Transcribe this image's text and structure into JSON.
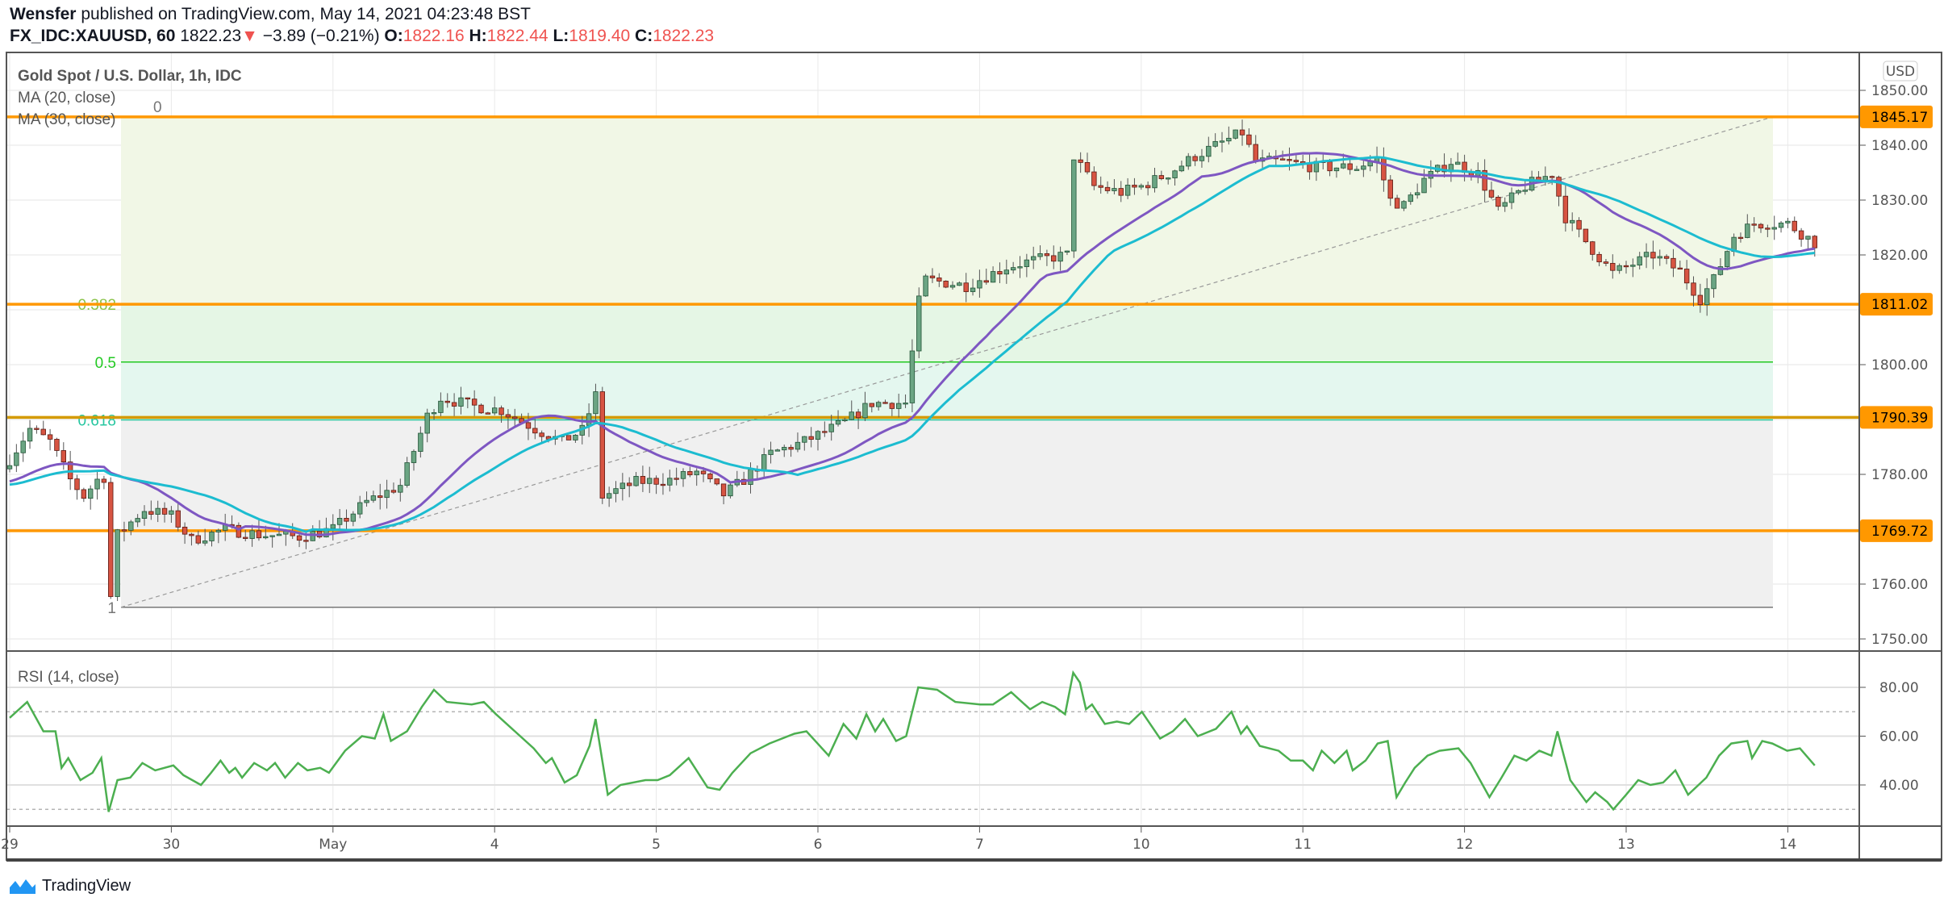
{
  "header": {
    "author": "Wensfer",
    "published": "published on TradingView.com, May 14, 2021 04:23:48 BST",
    "symbol": "FX_IDC:XAUUSD, 60",
    "last": "1822.23",
    "change": "−3.89 (−0.21%)",
    "o_label": "O:",
    "o": "1822.16",
    "h_label": "H:",
    "h": "1822.44",
    "l_label": "L:",
    "l": "1819.40",
    "c_label": "C:",
    "c": "1822.23"
  },
  "legend": {
    "title": "Gold Spot / U.S. Dollar, 1h, IDC",
    "ma20": "MA (20, close)",
    "ma30": "MA (30, close)",
    "rsi": "RSI (14, close)"
  },
  "price_axis": {
    "currency": "USD",
    "ticks": [
      "1850.00",
      "1840.00",
      "1830.00",
      "1820.00",
      "1800.00",
      "1780.00",
      "1760.00",
      "1750.00"
    ],
    "tick_values": [
      1850,
      1840,
      1830,
      1820,
      1800,
      1780,
      1760,
      1750
    ],
    "levels": [
      {
        "label": "1845.17",
        "value": 1845.17,
        "color": "#ff9800"
      },
      {
        "label": "1811.02",
        "value": 1811.02,
        "color": "#ff9800"
      },
      {
        "label": "1790.39",
        "value": 1790.39,
        "color": "#d49a00"
      },
      {
        "label": "1769.72",
        "value": 1769.72,
        "color": "#ff9800"
      }
    ]
  },
  "fib": {
    "high": 1845.17,
    "low": 1755.77,
    "levels": [
      {
        "label": "0",
        "ratio": 0,
        "color": "#777777"
      },
      {
        "label": "0.382",
        "ratio": 0.382,
        "color": "#8bc34a"
      },
      {
        "label": "0.5",
        "ratio": 0.5,
        "color": "#22c922"
      },
      {
        "label": "0.618",
        "ratio": 0.618,
        "color": "#26c6a0"
      },
      {
        "label": "1",
        "ratio": 1,
        "color": "#777777"
      }
    ],
    "bands": [
      "#f1f7e6",
      "#e5f6e5",
      "#e4f7ef",
      "#f0f0f0"
    ]
  },
  "time_axis": {
    "labels": [
      "29",
      "30",
      "May",
      "4",
      "5",
      "6",
      "7",
      "10",
      "11",
      "12",
      "13",
      "14"
    ],
    "hours": [
      0,
      24,
      48,
      72,
      96,
      120,
      144,
      168,
      192,
      216,
      240,
      264
    ]
  },
  "rsi_axis": {
    "ticks": [
      "80.00",
      "60.00",
      "40.00"
    ],
    "values": [
      80,
      60,
      40
    ],
    "bands": [
      70,
      30
    ]
  },
  "logo": {
    "text": "TradingView"
  },
  "colors": {
    "up": "#6ba583",
    "down": "#d75442",
    "ma20": "#7e57c2",
    "ma30": "#1cbcd0",
    "rsi": "#4caf50"
  },
  "chart_data": {
    "type": "candlestick",
    "title": "Gold Spot / U.S. Dollar, 1h, IDC",
    "ylim": [
      1748,
      1853
    ],
    "bars": 269,
    "close_anchors": [
      [
        0,
        1782.7
      ],
      [
        3,
        1788.3
      ],
      [
        6,
        1786
      ],
      [
        9,
        1779
      ],
      [
        11,
        1776
      ],
      [
        13,
        1779
      ],
      [
        14,
        1779.5
      ],
      [
        15,
        1757.7
      ],
      [
        16,
        1769
      ],
      [
        20,
        1773.6
      ],
      [
        24,
        1772.4
      ],
      [
        27,
        1768
      ],
      [
        32,
        1770
      ],
      [
        37,
        1769
      ],
      [
        43,
        1768.6
      ],
      [
        48,
        1770
      ],
      [
        53,
        1775
      ],
      [
        58,
        1778
      ],
      [
        62,
        1790.6
      ],
      [
        64,
        1794
      ],
      [
        69,
        1792.4
      ],
      [
        73,
        1791.7
      ],
      [
        78,
        1788.3
      ],
      [
        82,
        1786
      ],
      [
        85,
        1788
      ],
      [
        87,
        1794.4
      ],
      [
        88,
        1776
      ],
      [
        93,
        1778.6
      ],
      [
        98,
        1779
      ],
      [
        102,
        1780.4
      ],
      [
        106,
        1776.3
      ],
      [
        109,
        1779
      ],
      [
        113,
        1783.8
      ],
      [
        118,
        1786
      ],
      [
        124,
        1789.5
      ],
      [
        128,
        1793
      ],
      [
        133,
        1793
      ],
      [
        135,
        1811.5
      ],
      [
        136,
        1815.5
      ],
      [
        142,
        1814.4
      ],
      [
        148,
        1817.8
      ],
      [
        152,
        1819
      ],
      [
        157,
        1820
      ],
      [
        158,
        1838
      ],
      [
        161,
        1832.5
      ],
      [
        165,
        1831.4
      ],
      [
        168,
        1832.5
      ],
      [
        172,
        1834.8
      ],
      [
        176,
        1838
      ],
      [
        180,
        1840.5
      ],
      [
        183,
        1842.3
      ],
      [
        185,
        1837
      ],
      [
        189,
        1837
      ],
      [
        194,
        1836
      ],
      [
        200,
        1836
      ],
      [
        203,
        1837.5
      ],
      [
        205,
        1830
      ],
      [
        207,
        1829
      ],
      [
        210,
        1833.7
      ],
      [
        214,
        1837
      ],
      [
        218,
        1834.8
      ],
      [
        221,
        1828
      ],
      [
        225,
        1832.5
      ],
      [
        229,
        1834.8
      ],
      [
        231,
        1826.9
      ],
      [
        235,
        1821
      ],
      [
        238,
        1816.7
      ],
      [
        244,
        1820
      ],
      [
        248,
        1817
      ],
      [
        251,
        1812
      ],
      [
        253,
        1815.5
      ],
      [
        256,
        1823.5
      ],
      [
        259,
        1825.7
      ],
      [
        264,
        1825.7
      ],
      [
        268,
        1822.2
      ]
    ],
    "ma_periods": [
      20,
      30
    ],
    "rsi": [
      [
        0,
        67.5
      ],
      [
        2.6,
        74
      ],
      [
        5,
        62
      ],
      [
        6.8,
        62
      ],
      [
        7.7,
        47
      ],
      [
        8.7,
        51
      ],
      [
        10.5,
        42
      ],
      [
        12.3,
        45
      ],
      [
        13.6,
        51
      ],
      [
        14.7,
        29
      ],
      [
        16,
        42
      ],
      [
        17.9,
        43
      ],
      [
        19.7,
        49
      ],
      [
        21.6,
        46
      ],
      [
        24.3,
        48
      ],
      [
        25.8,
        44
      ],
      [
        28.4,
        40
      ],
      [
        29.9,
        45
      ],
      [
        31.3,
        50
      ],
      [
        32.6,
        45
      ],
      [
        33.5,
        47
      ],
      [
        34.5,
        43
      ],
      [
        36.3,
        49
      ],
      [
        38.2,
        46
      ],
      [
        39.4,
        49
      ],
      [
        40.9,
        43
      ],
      [
        42.8,
        49
      ],
      [
        44.2,
        46
      ],
      [
        46.1,
        47
      ],
      [
        47.4,
        45
      ],
      [
        49.8,
        54
      ],
      [
        52.3,
        60
      ],
      [
        54.2,
        59
      ],
      [
        55.5,
        69
      ],
      [
        56.6,
        58
      ],
      [
        59,
        62
      ],
      [
        61.2,
        72
      ],
      [
        63,
        79
      ],
      [
        64.9,
        74
      ],
      [
        68.6,
        73
      ],
      [
        70.4,
        74
      ],
      [
        72.2,
        69
      ],
      [
        75,
        62
      ],
      [
        77.8,
        55
      ],
      [
        79.6,
        49
      ],
      [
        80.5,
        51
      ],
      [
        82.4,
        41
      ],
      [
        84.2,
        44
      ],
      [
        86.1,
        56
      ],
      [
        87,
        67
      ],
      [
        88.8,
        36
      ],
      [
        90.7,
        40
      ],
      [
        94.4,
        42
      ],
      [
        96.2,
        42
      ],
      [
        98,
        44
      ],
      [
        100.8,
        51
      ],
      [
        103.6,
        39
      ],
      [
        105.4,
        38
      ],
      [
        107.3,
        45
      ],
      [
        110,
        53
      ],
      [
        112.8,
        57
      ],
      [
        116.5,
        61
      ],
      [
        118.3,
        62
      ],
      [
        121.6,
        52
      ],
      [
        123.8,
        65
      ],
      [
        125.7,
        59
      ],
      [
        127.2,
        69
      ],
      [
        128.5,
        62
      ],
      [
        129.7,
        67
      ],
      [
        131.6,
        58
      ],
      [
        133.1,
        60
      ],
      [
        134.9,
        80
      ],
      [
        137.7,
        79
      ],
      [
        140.4,
        74
      ],
      [
        144.1,
        73
      ],
      [
        146,
        73
      ],
      [
        148.7,
        78
      ],
      [
        151.5,
        71
      ],
      [
        153.3,
        74
      ],
      [
        155.2,
        72
      ],
      [
        156.7,
        69
      ],
      [
        157.9,
        86
      ],
      [
        158.9,
        82
      ],
      [
        159.8,
        71
      ],
      [
        160.7,
        73
      ],
      [
        162.6,
        65
      ],
      [
        164.4,
        66
      ],
      [
        166.2,
        65
      ],
      [
        168.1,
        70
      ],
      [
        170.8,
        59
      ],
      [
        172.7,
        62
      ],
      [
        174.5,
        67
      ],
      [
        176.4,
        60
      ],
      [
        179.1,
        63
      ],
      [
        181.4,
        70
      ],
      [
        182.8,
        61
      ],
      [
        183.7,
        64
      ],
      [
        185.6,
        56
      ],
      [
        188.4,
        54
      ],
      [
        190.2,
        50
      ],
      [
        192,
        50
      ],
      [
        193.5,
        46
      ],
      [
        194.8,
        54
      ],
      [
        196.7,
        49
      ],
      [
        198.5,
        54
      ],
      [
        199.4,
        46
      ],
      [
        201.3,
        50
      ],
      [
        203.1,
        57
      ],
      [
        204.6,
        58
      ],
      [
        205.9,
        35
      ],
      [
        207.2,
        41
      ],
      [
        208.6,
        47
      ],
      [
        210.5,
        52
      ],
      [
        212.3,
        54
      ],
      [
        215.1,
        55
      ],
      [
        216.9,
        49
      ],
      [
        219.7,
        35
      ],
      [
        221.5,
        43
      ],
      [
        223.4,
        52
      ],
      [
        225.2,
        50
      ],
      [
        227.1,
        54
      ],
      [
        228.9,
        52
      ],
      [
        229.8,
        62
      ],
      [
        231.7,
        42
      ],
      [
        234.1,
        33
      ],
      [
        235.4,
        37
      ],
      [
        237.2,
        33
      ],
      [
        238.1,
        30
      ],
      [
        240,
        36
      ],
      [
        241.8,
        42
      ],
      [
        243.6,
        40
      ],
      [
        245.5,
        41
      ],
      [
        247.3,
        46
      ],
      [
        249.2,
        36
      ],
      [
        251.9,
        43
      ],
      [
        253.8,
        52
      ],
      [
        255.6,
        57
      ],
      [
        258,
        58
      ],
      [
        258.7,
        51
      ],
      [
        260.2,
        58
      ],
      [
        261.7,
        57
      ],
      [
        263.9,
        54
      ],
      [
        265.8,
        55
      ],
      [
        268,
        48
      ]
    ]
  }
}
